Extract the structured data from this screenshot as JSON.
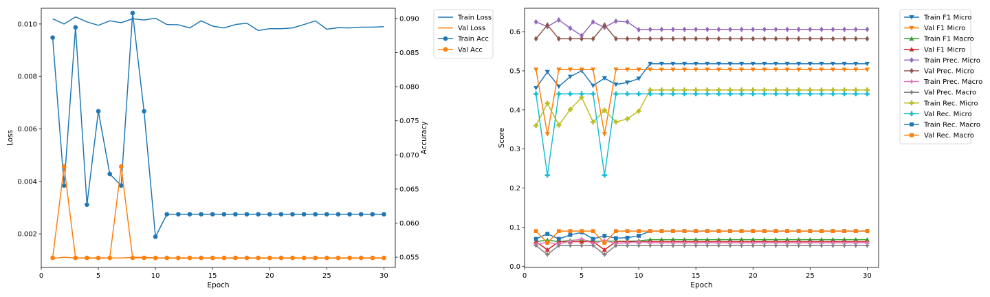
{
  "colors": {
    "blue": "#1f77b4",
    "orange": "#ff7f0e",
    "green": "#2ca02c",
    "red": "#d62728",
    "purple": "#9467bd",
    "brown": "#8c564b",
    "pink": "#e377c2",
    "gray": "#7f7f7f",
    "olive": "#bcbd22",
    "cyan": "#17becf"
  },
  "chart_data": [
    {
      "type": "line",
      "xlabel": "Epoch",
      "ylabel": "Loss",
      "y2label": "Accuracy",
      "xlim": [
        0,
        31
      ],
      "ylim": [
        0.00072,
        0.0106
      ],
      "y2lim": [
        0.0535,
        0.0915
      ],
      "xticks": [
        0,
        5,
        10,
        15,
        20,
        25,
        30
      ],
      "yticks": [
        0.002,
        0.004,
        0.006,
        0.008,
        0.01
      ],
      "y2ticks": [
        0.055,
        0.06,
        0.065,
        0.07,
        0.075,
        0.08,
        0.085,
        0.09
      ],
      "grid": false,
      "legend_position": "outside-top-right",
      "x": [
        1,
        2,
        3,
        4,
        5,
        6,
        7,
        8,
        9,
        10,
        11,
        12,
        13,
        14,
        15,
        16,
        17,
        18,
        19,
        20,
        21,
        22,
        23,
        24,
        25,
        26,
        27,
        28,
        29,
        30
      ],
      "series": [
        {
          "name": "Train Loss",
          "axis": "left",
          "color": "#1f77b4",
          "marker": "none",
          "values": [
            0.0102,
            0.01,
            0.01027,
            0.01008,
            0.00995,
            0.01012,
            0.01005,
            0.0102,
            0.01015,
            0.01022,
            0.00998,
            0.00997,
            0.00985,
            0.01012,
            0.00992,
            0.00985,
            0.00998,
            0.01003,
            0.00975,
            0.00982,
            0.00982,
            0.00985,
            0.00998,
            0.01012,
            0.0098,
            0.00986,
            0.00985,
            0.00988,
            0.00988,
            0.0099
          ]
        },
        {
          "name": "Val Loss",
          "axis": "left",
          "color": "#ff7f0e",
          "marker": "none",
          "values": [
            0.00106,
            0.00111,
            0.00108,
            0.00107,
            0.00107,
            0.00108,
            0.00108,
            0.0011,
            0.00111,
            0.00108,
            0.00107,
            0.00107,
            0.00107,
            0.00107,
            0.00107,
            0.00107,
            0.00107,
            0.00107,
            0.00107,
            0.00107,
            0.00107,
            0.00107,
            0.00107,
            0.00107,
            0.00107,
            0.00107,
            0.00107,
            0.00107,
            0.00107,
            0.00107
          ]
        },
        {
          "name": "Train Acc",
          "axis": "right",
          "color": "#1f77b4",
          "marker": "circle",
          "values": [
            0.0872,
            0.0655,
            0.0887,
            0.0627,
            0.0764,
            0.0672,
            0.0655,
            0.0908,
            0.0764,
            0.058,
            0.0613,
            0.0613,
            0.0613,
            0.0613,
            0.0613,
            0.0613,
            0.0613,
            0.0613,
            0.0613,
            0.0613,
            0.0613,
            0.0613,
            0.0613,
            0.0613,
            0.0613,
            0.0613,
            0.0613,
            0.0613,
            0.0613,
            0.0613
          ]
        },
        {
          "name": "Val Acc",
          "axis": "right",
          "color": "#ff7f0e",
          "marker": "circle",
          "values": [
            0.0549,
            0.0683,
            0.0549,
            0.0549,
            0.0549,
            0.0549,
            0.0683,
            0.0549,
            0.0549,
            0.0549,
            0.0549,
            0.0549,
            0.0549,
            0.0549,
            0.0549,
            0.0549,
            0.0549,
            0.0549,
            0.0549,
            0.0549,
            0.0549,
            0.0549,
            0.0549,
            0.0549,
            0.0549,
            0.0549,
            0.0549,
            0.0549,
            0.0549,
            0.0549
          ]
        }
      ]
    },
    {
      "type": "line",
      "xlabel": "Epoch",
      "ylabel": "Score",
      "xlim": [
        0,
        31
      ],
      "ylim": [
        -0.003,
        0.66
      ],
      "xticks": [
        0,
        5,
        10,
        15,
        20,
        25,
        30
      ],
      "yticks": [
        0.0,
        0.1,
        0.2,
        0.3,
        0.4,
        0.5,
        0.6
      ],
      "grid": false,
      "legend_position": "outside-top-right",
      "x": [
        1,
        2,
        3,
        4,
        5,
        6,
        7,
        8,
        9,
        10,
        11,
        12,
        13,
        14,
        15,
        16,
        17,
        18,
        19,
        20,
        21,
        22,
        23,
        24,
        25,
        26,
        27,
        28,
        29,
        30
      ],
      "series": [
        {
          "name": "Train F1 Micro",
          "color": "#1f77b4",
          "marker": "triangle_down",
          "values": [
            0.456,
            0.497,
            0.46,
            0.485,
            0.5,
            0.462,
            0.481,
            0.465,
            0.47,
            0.48,
            0.518,
            0.518,
            0.518,
            0.518,
            0.518,
            0.518,
            0.518,
            0.518,
            0.518,
            0.518,
            0.518,
            0.518,
            0.518,
            0.518,
            0.518,
            0.518,
            0.518,
            0.518,
            0.518,
            0.518
          ]
        },
        {
          "name": "Val F1 Micro",
          "color": "#ff7f0e",
          "marker": "triangle_down",
          "values": [
            0.503,
            0.338,
            0.503,
            0.503,
            0.503,
            0.503,
            0.338,
            0.503,
            0.503,
            0.503,
            0.503,
            0.503,
            0.503,
            0.503,
            0.503,
            0.503,
            0.503,
            0.503,
            0.503,
            0.503,
            0.503,
            0.503,
            0.503,
            0.503,
            0.503,
            0.503,
            0.503,
            0.503,
            0.503,
            0.503
          ]
        },
        {
          "name": "Train F1 Macro",
          "color": "#2ca02c",
          "marker": "triangle_up",
          "values": [
            0.063,
            0.067,
            0.063,
            0.066,
            0.068,
            0.063,
            0.065,
            0.064,
            0.064,
            0.065,
            0.068,
            0.068,
            0.068,
            0.068,
            0.068,
            0.068,
            0.068,
            0.068,
            0.068,
            0.068,
            0.068,
            0.068,
            0.068,
            0.068,
            0.068,
            0.068,
            0.068,
            0.068,
            0.068,
            0.068
          ]
        },
        {
          "name": "Val F1 Micro",
          "color": "#d62728",
          "marker": "triangle_up",
          "values": [
            0.063,
            0.042,
            0.063,
            0.063,
            0.063,
            0.063,
            0.042,
            0.063,
            0.063,
            0.063,
            0.063,
            0.063,
            0.063,
            0.063,
            0.063,
            0.063,
            0.063,
            0.063,
            0.063,
            0.063,
            0.063,
            0.063,
            0.063,
            0.063,
            0.063,
            0.063,
            0.063,
            0.063,
            0.063,
            0.063
          ]
        },
        {
          "name": "Train Prec. Micro",
          "color": "#9467bd",
          "marker": "diamond",
          "values": [
            0.625,
            0.613,
            0.63,
            0.609,
            0.59,
            0.625,
            0.611,
            0.627,
            0.625,
            0.605,
            0.606,
            0.606,
            0.606,
            0.606,
            0.606,
            0.606,
            0.606,
            0.606,
            0.606,
            0.606,
            0.606,
            0.606,
            0.606,
            0.606,
            0.606,
            0.606,
            0.606,
            0.606,
            0.606,
            0.606
          ]
        },
        {
          "name": "Val Prec. Micro",
          "color": "#8c564b",
          "marker": "diamond",
          "values": [
            0.582,
            0.617,
            0.582,
            0.582,
            0.582,
            0.582,
            0.617,
            0.582,
            0.582,
            0.582,
            0.582,
            0.582,
            0.582,
            0.582,
            0.582,
            0.582,
            0.582,
            0.582,
            0.582,
            0.582,
            0.582,
            0.582,
            0.582,
            0.582,
            0.582,
            0.582,
            0.582,
            0.582,
            0.582,
            0.582
          ]
        },
        {
          "name": "Train Prec. Macro",
          "color": "#e377c2",
          "marker": "star",
          "values": [
            0.057,
            0.061,
            0.057,
            0.064,
            0.07,
            0.058,
            0.066,
            0.058,
            0.06,
            0.062,
            0.06,
            0.06,
            0.06,
            0.06,
            0.06,
            0.06,
            0.06,
            0.06,
            0.06,
            0.06,
            0.06,
            0.06,
            0.06,
            0.06,
            0.06,
            0.06,
            0.06,
            0.06,
            0.06,
            0.06
          ]
        },
        {
          "name": "Val Prec. Macro",
          "color": "#7f7f7f",
          "marker": "star",
          "values": [
            0.053,
            0.03,
            0.053,
            0.053,
            0.053,
            0.053,
            0.03,
            0.053,
            0.053,
            0.053,
            0.053,
            0.053,
            0.053,
            0.053,
            0.053,
            0.053,
            0.053,
            0.053,
            0.053,
            0.053,
            0.053,
            0.053,
            0.053,
            0.053,
            0.053,
            0.053,
            0.053,
            0.053,
            0.053,
            0.053
          ]
        },
        {
          "name": "Train Rec. Micro",
          "color": "#bcbd22",
          "marker": "plus",
          "values": [
            0.36,
            0.417,
            0.361,
            0.401,
            0.432,
            0.369,
            0.399,
            0.369,
            0.377,
            0.397,
            0.451,
            0.451,
            0.451,
            0.451,
            0.451,
            0.451,
            0.451,
            0.451,
            0.451,
            0.451,
            0.451,
            0.451,
            0.451,
            0.451,
            0.451,
            0.451,
            0.451,
            0.451,
            0.451,
            0.451
          ]
        },
        {
          "name": "Val Rec. Micro",
          "color": "#17becf",
          "marker": "plus",
          "values": [
            0.441,
            0.233,
            0.441,
            0.441,
            0.441,
            0.441,
            0.233,
            0.441,
            0.441,
            0.441,
            0.441,
            0.441,
            0.441,
            0.441,
            0.441,
            0.441,
            0.441,
            0.441,
            0.441,
            0.441,
            0.441,
            0.441,
            0.441,
            0.441,
            0.441,
            0.441,
            0.441,
            0.441,
            0.441,
            0.441
          ]
        },
        {
          "name": "Train Rec. Macro",
          "color": "#1f77b4",
          "marker": "square",
          "values": [
            0.07,
            0.083,
            0.07,
            0.08,
            0.087,
            0.07,
            0.078,
            0.072,
            0.073,
            0.078,
            0.09,
            0.09,
            0.09,
            0.09,
            0.09,
            0.09,
            0.09,
            0.09,
            0.09,
            0.09,
            0.09,
            0.09,
            0.09,
            0.09,
            0.09,
            0.09,
            0.09,
            0.09,
            0.09,
            0.09
          ]
        },
        {
          "name": "Val Rec. Macro",
          "color": "#ff7f0e",
          "marker": "square",
          "values": [
            0.09,
            0.06,
            0.09,
            0.09,
            0.09,
            0.09,
            0.06,
            0.09,
            0.09,
            0.09,
            0.09,
            0.09,
            0.09,
            0.09,
            0.09,
            0.09,
            0.09,
            0.09,
            0.09,
            0.09,
            0.09,
            0.09,
            0.09,
            0.09,
            0.09,
            0.09,
            0.09,
            0.09,
            0.09,
            0.09
          ]
        }
      ]
    }
  ]
}
